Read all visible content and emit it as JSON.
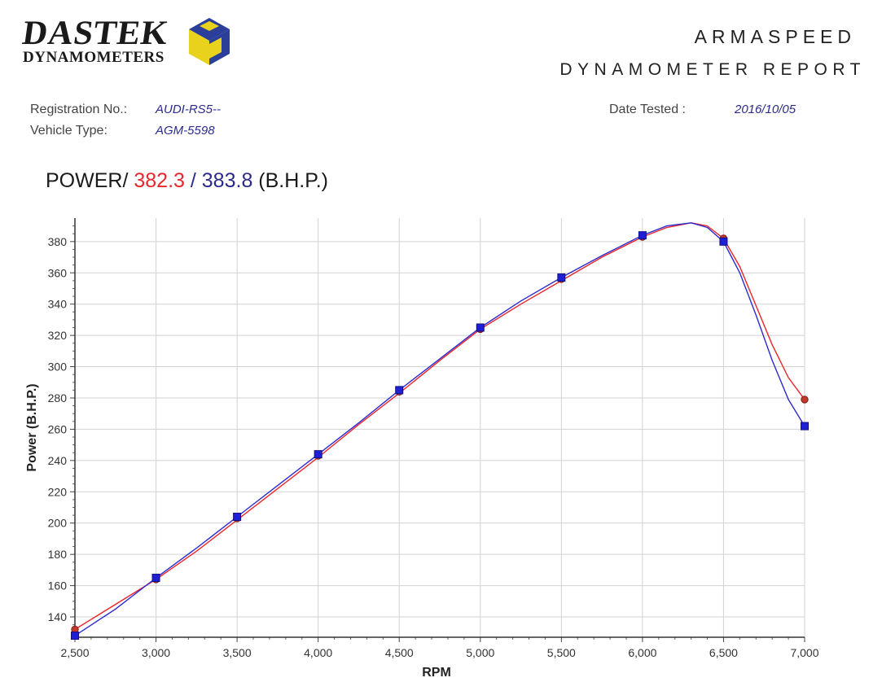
{
  "logo": {
    "word": "DASTEK",
    "sub": "DYNAMOMETERS",
    "colors": {
      "cube_yellow": "#e8d21c",
      "cube_blue": "#2a3e9a"
    }
  },
  "header": {
    "brand": "ARMASPEED",
    "title": "DYNAMOMETER REPORT"
  },
  "meta": {
    "registration_label": "Registration No.:",
    "registration_value": "AUDI-RS5--",
    "vehicle_label": "Vehicle Type:",
    "vehicle_value": "AGM-5598",
    "date_label": "Date Tested :",
    "date_value": "2016/10/05"
  },
  "power_title": {
    "prefix": "POWER/",
    "value_red": "382.3",
    "separator": "/",
    "value_blue": "383.8",
    "unit": "(B.H.P.)"
  },
  "chart_data": {
    "type": "line",
    "xlabel": "RPM",
    "ylabel": "Power (B.H.P.)",
    "xlim": [
      2500,
      7000
    ],
    "ylim": [
      127,
      395
    ],
    "x_ticks": [
      2500,
      3000,
      3500,
      4000,
      4500,
      5000,
      5500,
      6000,
      6500,
      7000
    ],
    "x_tick_labels": [
      "2,500",
      "3,000",
      "3,500",
      "4,000",
      "4,500",
      "5,000",
      "5,500",
      "6,000",
      "6,500",
      "7,000"
    ],
    "y_ticks": [
      140,
      160,
      180,
      200,
      220,
      240,
      260,
      280,
      300,
      320,
      340,
      360,
      380
    ],
    "y_tick_labels": [
      "140",
      "160",
      "180",
      "200",
      "220",
      "240",
      "260",
      "280",
      "300",
      "320",
      "340",
      "360",
      "380"
    ],
    "grid": true,
    "series": [
      {
        "color": "#e8262c",
        "marker": "circle",
        "curve": [
          [
            2500,
            132
          ],
          [
            2750,
            148
          ],
          [
            3000,
            164
          ],
          [
            3250,
            182
          ],
          [
            3500,
            202
          ],
          [
            3750,
            222
          ],
          [
            4000,
            242
          ],
          [
            4250,
            263
          ],
          [
            4500,
            283
          ],
          [
            4750,
            304
          ],
          [
            5000,
            324
          ],
          [
            5250,
            340
          ],
          [
            5500,
            355
          ],
          [
            5750,
            370
          ],
          [
            6000,
            383
          ],
          [
            6150,
            389
          ],
          [
            6300,
            392
          ],
          [
            6400,
            390
          ],
          [
            6500,
            382
          ],
          [
            6600,
            364
          ],
          [
            6700,
            339
          ],
          [
            6800,
            314
          ],
          [
            6900,
            293
          ],
          [
            7000,
            279
          ]
        ],
        "markers": [
          [
            2500,
            132
          ],
          [
            3000,
            164
          ],
          [
            3500,
            203
          ],
          [
            4000,
            243
          ],
          [
            4500,
            284
          ],
          [
            5000,
            324
          ],
          [
            5500,
            356
          ],
          [
            6000,
            383
          ],
          [
            6500,
            382
          ],
          [
            7000,
            279
          ]
        ]
      },
      {
        "color": "#2b2bd0",
        "marker": "square",
        "curve": [
          [
            2500,
            128
          ],
          [
            2750,
            145
          ],
          [
            3000,
            165
          ],
          [
            3250,
            184
          ],
          [
            3500,
            204
          ],
          [
            3750,
            224
          ],
          [
            4000,
            244
          ],
          [
            4250,
            264
          ],
          [
            4500,
            285
          ],
          [
            4750,
            305
          ],
          [
            5000,
            325
          ],
          [
            5250,
            342
          ],
          [
            5500,
            357
          ],
          [
            5750,
            371
          ],
          [
            6000,
            384
          ],
          [
            6150,
            390
          ],
          [
            6300,
            392
          ],
          [
            6400,
            389
          ],
          [
            6500,
            380
          ],
          [
            6600,
            360
          ],
          [
            6700,
            333
          ],
          [
            6800,
            304
          ],
          [
            6900,
            279
          ],
          [
            7000,
            262
          ]
        ],
        "markers": [
          [
            2500,
            128
          ],
          [
            3000,
            165
          ],
          [
            3500,
            204
          ],
          [
            4000,
            244
          ],
          [
            4500,
            285
          ],
          [
            5000,
            325
          ],
          [
            5500,
            357
          ],
          [
            6000,
            384
          ],
          [
            6500,
            380
          ],
          [
            7000,
            262
          ]
        ]
      }
    ]
  }
}
